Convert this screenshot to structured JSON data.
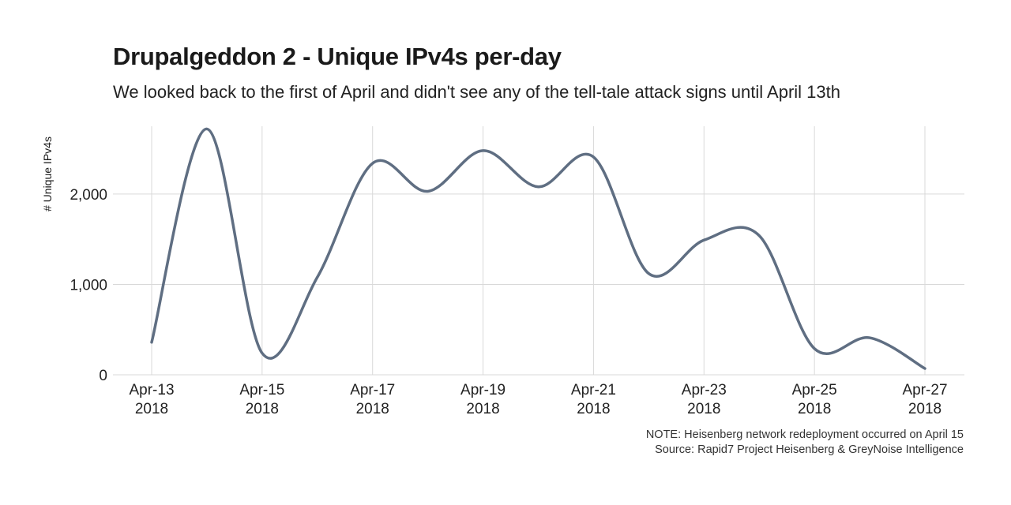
{
  "chart_data": {
    "type": "line",
    "title": "Drupalgeddon 2 - Unique IPv4s per-day",
    "subtitle": "We looked back to the first of April and didn't see any of the tell-tale attack signs until April 13th",
    "ylabel": "# Unique IPv4s",
    "xlabel": "",
    "x": [
      "Apr-13",
      "Apr-14",
      "Apr-15",
      "Apr-16",
      "Apr-17",
      "Apr-18",
      "Apr-19",
      "Apr-20",
      "Apr-21",
      "Apr-22",
      "Apr-23",
      "Apr-24",
      "Apr-25",
      "Apr-26",
      "Apr-27"
    ],
    "series": [
      {
        "name": "Unique IPv4s",
        "color": "#5f6e82",
        "values": [
          360,
          2720,
          240,
          1080,
          2340,
          2030,
          2480,
          2080,
          2410,
          1120,
          1490,
          1540,
          290,
          410,
          70
        ]
      }
    ],
    "ylim": [
      0,
      2750
    ],
    "yticks": [
      0,
      1000,
      2000
    ],
    "ytick_labels": [
      "0",
      "1,000",
      "2,000"
    ],
    "xticks": [
      {
        "index": 0,
        "line1": "Apr-13",
        "line2": "2018"
      },
      {
        "index": 2,
        "line1": "Apr-15",
        "line2": "2018"
      },
      {
        "index": 4,
        "line1": "Apr-17",
        "line2": "2018"
      },
      {
        "index": 6,
        "line1": "Apr-19",
        "line2": "2018"
      },
      {
        "index": 8,
        "line1": "Apr-21",
        "line2": "2018"
      },
      {
        "index": 10,
        "line1": "Apr-23",
        "line2": "2018"
      },
      {
        "index": 12,
        "line1": "Apr-25",
        "line2": "2018"
      },
      {
        "index": 14,
        "line1": "Apr-27",
        "line2": "2018"
      }
    ],
    "grid": true,
    "grid_color": "#d9d9d9"
  },
  "caption": {
    "note": "NOTE: Heisenberg network redeployment occurred on April 15",
    "source": "Source: Rapid7 Project Heisenberg & GreyNoise Intelligence"
  }
}
